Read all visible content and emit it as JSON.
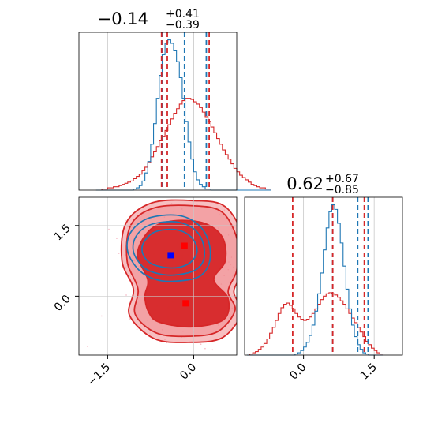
{
  "colors": {
    "blue": "#1f77b4",
    "red": "#d62728",
    "red_fill_light": "#f08a8e",
    "red_fill_dark": "#d62728",
    "grid": "#c8c8c8",
    "scatter": "#f6b7c4",
    "marker_blue": "#0000ff",
    "marker_red": "#ff0000"
  },
  "chart_data": {
    "type": "corner",
    "grid": true,
    "params": [
      {
        "name": "",
        "title": {
          "median": "−0.14",
          "plus": "+0.41",
          "minus": "−0.39"
        },
        "range": [
          -2.0,
          0.75
        ],
        "ticks": [
          -1.5,
          0.0
        ],
        "tick_labels": [
          "−1.5",
          "0.0"
        ]
      },
      {
        "name": "",
        "title": {
          "median": "0.62",
          "plus": "+0.67",
          "minus": "−0.85"
        },
        "range": [
          -1.25,
          2.1
        ],
        "ticks": [
          0.0,
          1.5
        ],
        "tick_labels": [
          "0.0",
          "1.5"
        ]
      }
    ],
    "marginals": [
      {
        "param": 0,
        "bin_start": -1.7,
        "bin_width": 0.05,
        "series": [
          {
            "name": "",
            "color": "red",
            "counts": [
              0,
              0,
              1,
              1,
              2,
              2,
              3,
              3,
              4,
              5,
              6,
              7,
              8,
              10,
              12,
              14,
              17,
              20,
              24,
              29,
              34,
              38,
              43,
              47,
              52,
              57,
              62,
              67,
              71,
              75,
              78,
              80,
              80,
              79,
              77,
              75,
              72,
              68,
              64,
              60,
              55,
              50,
              45,
              40,
              35,
              31,
              27,
              23,
              19,
              16,
              13,
              11,
              9,
              7,
              5,
              4,
              3,
              2,
              2,
              1,
              1
            ]
          },
          {
            "name": "",
            "color": "blue",
            "counts": [
              0,
              0,
              0,
              0,
              0,
              0,
              0,
              0,
              0,
              0,
              0,
              0,
              0,
              1,
              2,
              4,
              8,
              15,
              25,
              40,
              58,
              80,
              100,
              118,
              128,
              131,
              128,
              122,
              112,
              98,
              80,
              60,
              42,
              27,
              16,
              9,
              5,
              3,
              1,
              1,
              0,
              0,
              0,
              0,
              0,
              0,
              0,
              0,
              0,
              0,
              0,
              0,
              0,
              0,
              0,
              0,
              0,
              0,
              0,
              0,
              0
            ]
          }
        ],
        "quantiles": {
          "blue": [
            -0.55,
            -0.16,
            0.22
          ],
          "red": [
            -0.56,
            -0.46,
            0.27
          ]
        }
      },
      {
        "param": 1,
        "bin_start": -1.2,
        "bin_width": 0.06,
        "series": [
          {
            "name": "",
            "color": "red",
            "counts": [
              0,
              1,
              2,
              3,
              5,
              7,
              10,
              14,
              19,
              24,
              30,
              36,
              41,
              44,
              45,
              43,
              40,
              36,
              33,
              31,
              30,
              31,
              33,
              36,
              40,
              44,
              48,
              51,
              53,
              54,
              53,
              52,
              50,
              47,
              44,
              40,
              36,
              32,
              28,
              24,
              20,
              16,
              12,
              9,
              6,
              4,
              2,
              1
            ]
          },
          {
            "name": "",
            "color": "blue",
            "counts": [
              0,
              0,
              0,
              0,
              0,
              0,
              0,
              0,
              0,
              0,
              0,
              0,
              0,
              0,
              0,
              0,
              0,
              1,
              2,
              4,
              7,
              11,
              17,
              26,
              38,
              53,
              71,
              91,
              110,
              124,
              130,
              126,
              114,
              97,
              77,
              57,
              40,
              26,
              16,
              9,
              5,
              2,
              1,
              0,
              0,
              0,
              0,
              0
            ]
          }
        ],
        "quantiles": {
          "blue": [
            0.62,
            1.15,
            1.37
          ],
          "red": [
            -0.23,
            0.62,
            1.29
          ]
        }
      }
    ],
    "joint": {
      "x_param": 0,
      "y_param": 1,
      "red": {
        "levels": [
          {
            "fill": "red_fill_light",
            "outline": [
              [
                -0.69,
                -0.9
              ],
              [
                -0.1,
                -0.98
              ],
              [
                0.5,
                -0.88
              ],
              [
                0.83,
                -0.35
              ],
              [
                0.7,
                0.1
              ],
              [
                0.86,
                0.55
              ],
              [
                0.88,
                1.2
              ],
              [
                0.55,
                1.9
              ],
              [
                -0.02,
                2.03
              ],
              [
                -0.73,
                1.98
              ],
              [
                -1.18,
                1.55
              ],
              [
                -1.25,
                0.75
              ],
              [
                -1.05,
                0.15
              ],
              [
                -1.12,
                -0.4
              ]
            ]
          },
          {
            "fill": "red_fill_light",
            "outline": [
              [
                -0.65,
                -0.78
              ],
              [
                -0.1,
                -0.85
              ],
              [
                0.42,
                -0.75
              ],
              [
                0.72,
                -0.3
              ],
              [
                0.6,
                0.1
              ],
              [
                0.75,
                0.55
              ],
              [
                0.77,
                1.15
              ],
              [
                0.5,
                1.78
              ],
              [
                -0.02,
                1.92
              ],
              [
                -0.7,
                1.87
              ],
              [
                -1.1,
                1.5
              ],
              [
                -1.16,
                0.75
              ],
              [
                -0.97,
                0.15
              ],
              [
                -1.02,
                -0.38
              ]
            ]
          },
          {
            "fill": "red_fill_dark",
            "outline": [
              [
                -0.6,
                -0.55
              ],
              [
                -0.05,
                -0.65
              ],
              [
                0.52,
                -0.5
              ],
              [
                0.6,
                -0.05
              ],
              [
                0.35,
                0.35
              ],
              [
                0.55,
                0.75
              ],
              [
                0.5,
                1.25
              ],
              [
                0.18,
                1.55
              ],
              [
                -0.35,
                1.6
              ],
              [
                -0.75,
                1.42
              ],
              [
                -0.98,
                0.9
              ],
              [
                -0.8,
                0.35
              ],
              [
                -0.85,
                0.0
              ],
              [
                -0.78,
                -0.35
              ]
            ]
          }
        ],
        "marker": {
          "x": -0.14,
          "y": -0.15
        }
      },
      "blue": {
        "levels": [
          [
            [
              -0.3,
              0.32
            ],
            [
              0.1,
              0.42
            ],
            [
              0.28,
              0.75
            ],
            [
              0.25,
              1.2
            ],
            [
              0.05,
              1.55
            ],
            [
              -0.3,
              1.72
            ],
            [
              -0.8,
              1.65
            ],
            [
              -1.1,
              1.35
            ],
            [
              -1.15,
              0.95
            ],
            [
              -0.95,
              0.55
            ],
            [
              -0.65,
              0.35
            ]
          ],
          [
            [
              -0.33,
              0.45
            ],
            [
              0.02,
              0.55
            ],
            [
              0.18,
              0.8
            ],
            [
              0.15,
              1.18
            ],
            [
              -0.02,
              1.45
            ],
            [
              -0.32,
              1.58
            ],
            [
              -0.75,
              1.52
            ],
            [
              -1.0,
              1.28
            ],
            [
              -1.05,
              0.95
            ],
            [
              -0.88,
              0.62
            ],
            [
              -0.62,
              0.48
            ]
          ],
          [
            [
              -0.38,
              0.6
            ],
            [
              -0.1,
              0.68
            ],
            [
              0.05,
              0.9
            ],
            [
              0.02,
              1.15
            ],
            [
              -0.15,
              1.35
            ],
            [
              -0.4,
              1.42
            ],
            [
              -0.7,
              1.35
            ],
            [
              -0.88,
              1.12
            ],
            [
              -0.88,
              0.88
            ],
            [
              -0.72,
              0.68
            ]
          ]
        ],
        "marker": {
          "x": -0.4,
          "y": 0.87
        }
      },
      "red_peak_marker": {
        "x": -0.16,
        "y": 1.07
      },
      "scatter_hint": "light pink background samples"
    }
  }
}
